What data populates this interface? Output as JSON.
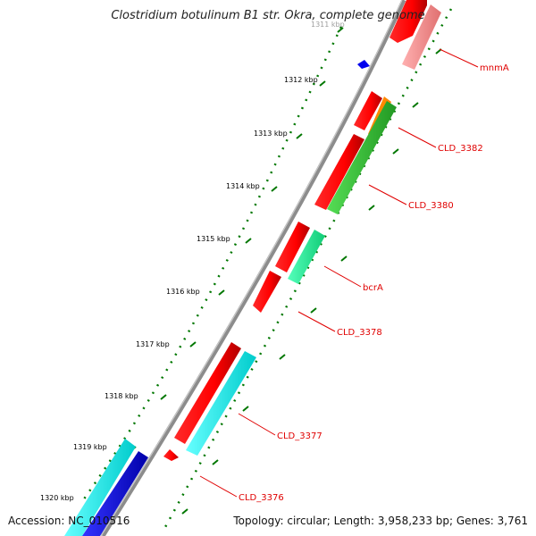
{
  "title": "Clostridium botulinum B1 str. Okra, complete genome",
  "accession": "Accession: NC_010516",
  "topology": "Topology: circular; Length: 3,958,233 bp; Genes: 3,761",
  "kbp_labels": [
    "1311 kbp",
    "1312 kbp",
    "1313 kbp",
    "1314 kbp",
    "1315 kbp",
    "1316 kbp",
    "1317 kbp",
    "1318 kbp",
    "1319 kbp",
    "1320 kbp"
  ],
  "gene_labels": [
    "mnmA",
    "CLD_3382",
    "CLD_3380",
    "bcrA",
    "CLD_3378",
    "CLD_3377",
    "CLD_3376"
  ],
  "colors": {
    "backbone": "#888888",
    "forward_cds": "#ff0000",
    "reverse_cds": "#ff0000",
    "cyan_feature": "#00ffff",
    "blue_feature": "#0000ee",
    "green_feature": "#33cc33",
    "teal_feature": "#22ee99",
    "orange_feature": "#ff8800",
    "pink_feature": "#f08080",
    "tick_green": "#007700",
    "label_line": "#e00000"
  }
}
